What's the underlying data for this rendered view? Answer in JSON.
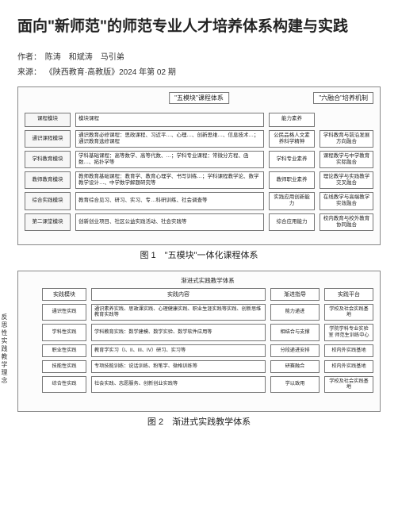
{
  "title": "面向\"新师范\"的师范专业人才培养体系构建与实践",
  "authors_label": "作者：",
  "authors": "陈涛　和斌涛　马引弟",
  "source_label": "来源：",
  "source": "《陕西教育·高教版》2024 年第 02 期",
  "fig1": {
    "caption": "图 1　\"五模块\"一体化课程体系",
    "header_center": "\"五模块\"课程体系",
    "header_right": "\"六融合\"培养机制",
    "rows": [
      {
        "left": "课程模块",
        "mid": "模块课程",
        "c3": "能力素养",
        "right": ""
      },
      {
        "left": "通识课程模块",
        "mid": "通识教育必修课程：思政课程、习近平…、心理…、创新思维…、信息技术…；通识教育选修课程",
        "c3": "公民品格人文素养科学精神",
        "right": "学科教育与前沿发展方向融合"
      },
      {
        "left": "学科教育模块",
        "mid": "学科基础课程：高等数学、高等代数、…；学科专业课程：常微分方程、函数…、拓扑学等",
        "c3": "学科专业素养",
        "right": "课程教学与中学教育实际融合"
      },
      {
        "left": "教师教育模块",
        "mid": "教师教育基础课程：教育学、教育心理学、书写训练…；学科课程教学论、数学教学设计…、中学数学解题研究等",
        "c3": "教师职业素养",
        "right": "理论教学与实践教学交叉融合"
      },
      {
        "left": "综合实践模块",
        "mid": "教育综合见习、研习、实习、专…科研训练、社会调查等",
        "c3": "实践应用创新能力",
        "right": "在线教学与高端教学实效融合"
      },
      {
        "left": "第二课堂模块",
        "mid": "创新创业项目、社区公益实践活动、社会实践等",
        "c3": "综合应用能力",
        "right": "校内教育与校外教育协同融合"
      }
    ]
  },
  "fig2": {
    "caption": "图 2　渐进式实践教学体系",
    "top_title": "渐进式实践教学体系",
    "side_label": "反思性实践教学理念",
    "headers": [
      "实践模块",
      "实践内容",
      "渐进指导",
      "实践平台"
    ],
    "rows": [
      {
        "left": "通识性实践",
        "mid": "通识素养实践、思政课实践、心理健康实践、职业生涯实践等实践、创新思维教育实践等",
        "c3": "能力递进",
        "right": "学校及社会实践基地"
      },
      {
        "left": "学科性实践",
        "mid": "学科教育实践：数学建模、数学实验、数学软件应用等",
        "c3": "相结合与支撑",
        "right": "学院学科专业实验室 师范生训练中心"
      },
      {
        "left": "职业性实践",
        "mid": "教育学实习（I、II、III、IV）研习、实习等",
        "c3": "分段递进安排",
        "right": "校内外实践基地"
      },
      {
        "left": "技能性实践",
        "mid": "专项技能训练：说话训练、粉笔字、微格训练等",
        "c3": "研赛融合",
        "right": "校内外实践基地"
      },
      {
        "left": "综合性实践",
        "mid": "社会实践、志愿服务、创新创业实践等",
        "c3": "学以致用",
        "right": "学校及社会实践基地"
      }
    ]
  }
}
